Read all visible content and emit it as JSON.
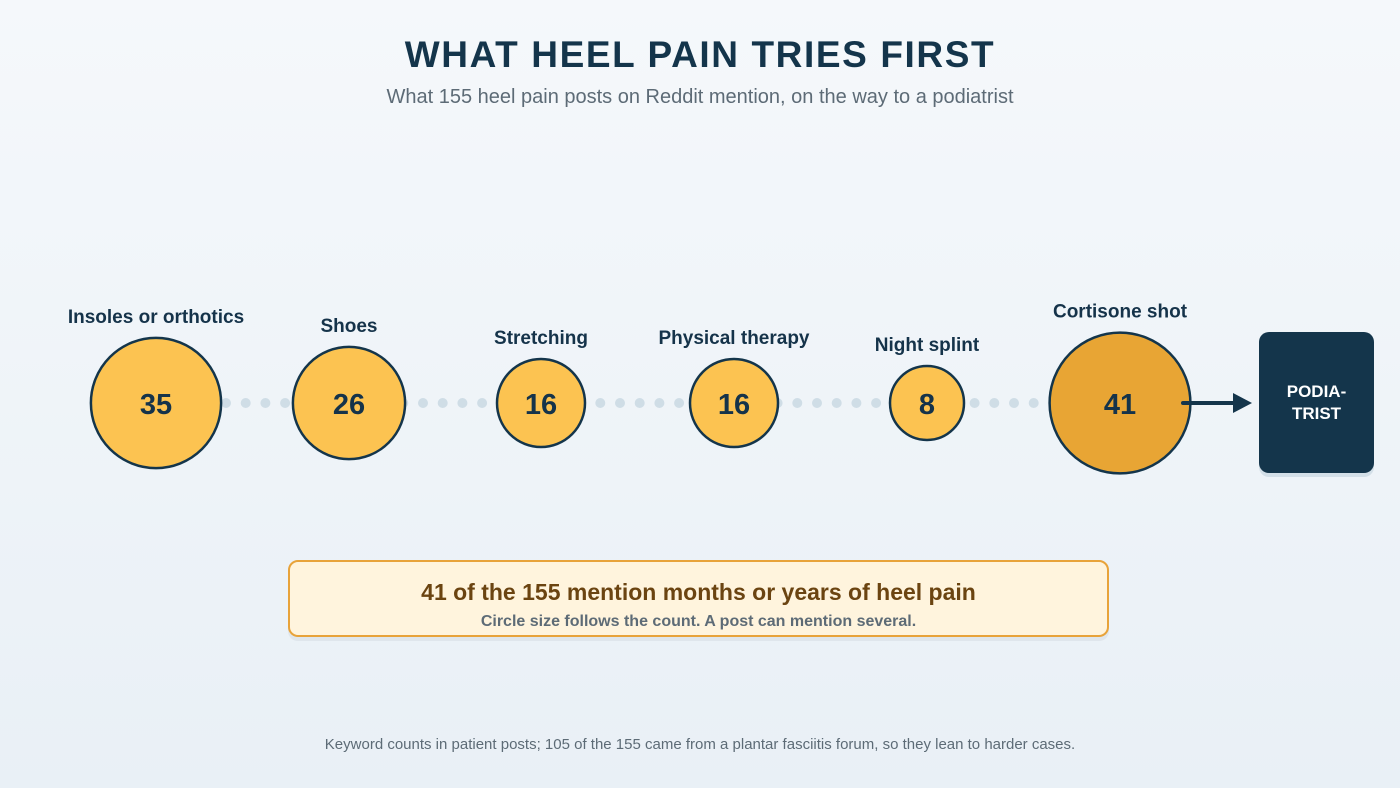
{
  "header": {
    "title": "WHAT HEEL PAIN TRIES FIRST",
    "subtitle": "What 155 heel pain posts on Reddit mention, on the way to a podiatrist"
  },
  "chart_data": {
    "type": "bubble-flow",
    "total_posts": 155,
    "encoding": "Circle size follows the count",
    "steps": [
      {
        "label": "Insoles or orthotics",
        "value": 35,
        "color": "#fcc351"
      },
      {
        "label": "Shoes",
        "value": 26,
        "color": "#fcc351"
      },
      {
        "label": "Stretching",
        "value": 16,
        "color": "#fcc351"
      },
      {
        "label": "Physical therapy",
        "value": 16,
        "color": "#fcc351"
      },
      {
        "label": "Night splint",
        "value": 8,
        "color": "#fcc351"
      },
      {
        "label": "Cortisone shot",
        "value": 41,
        "color": "#e8a534"
      }
    ],
    "destination": "PODIA-\nTRIST"
  },
  "callout": {
    "headline": "41 of the 155 mention months or years of heel pain",
    "note": "Circle size follows the count. A post can mention several."
  },
  "footnote": "Keyword counts in patient posts; 105 of the 155 came from a plantar fasciitis forum, so they lean to harder cases.",
  "colors": {
    "navy": "#14354b",
    "bubble": "#fcc351",
    "bubble_highlight": "#e8a534",
    "dots": "#cfdde6",
    "callout_bg": "#fff4dd",
    "callout_border": "#e8a33a"
  }
}
